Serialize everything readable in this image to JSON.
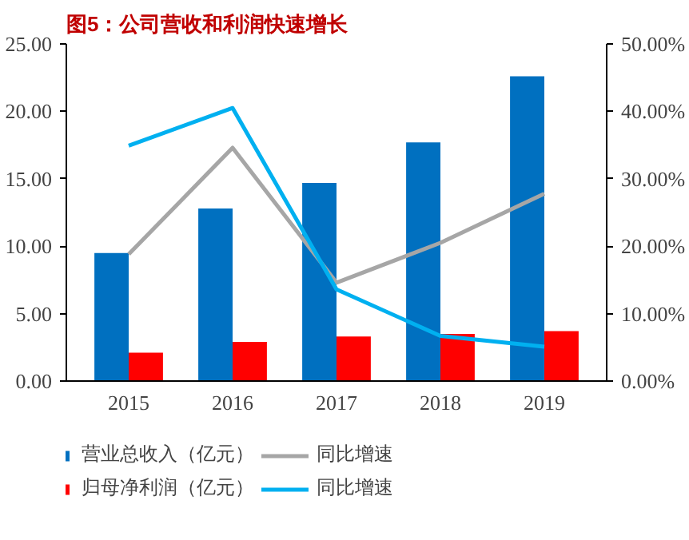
{
  "chart_data": {
    "type": "bar",
    "title": "图5：公司营收和利润快速增长",
    "categories": [
      "2015",
      "2016",
      "2017",
      "2018",
      "2019"
    ],
    "series": [
      {
        "name": "营业总收入（亿元）",
        "color": "#0070c0",
        "values": [
          9.5,
          12.8,
          14.7,
          17.7,
          22.6
        ]
      },
      {
        "name": "归母净利润（亿元）",
        "color": "#ff0000",
        "values": [
          2.1,
          2.9,
          3.3,
          3.5,
          3.7
        ]
      },
      {
        "name": "同比增速",
        "type": "line",
        "axis": "y2",
        "color": "#a6a6a6",
        "values": [
          18.8,
          34.6,
          14.6,
          20.5,
          27.8
        ]
      },
      {
        "name": "同比增速",
        "type": "line",
        "axis": "y2",
        "color": "#00b0f0",
        "values": [
          34.9,
          40.5,
          13.6,
          6.7,
          5.1
        ]
      }
    ],
    "ylim": [
      0,
      25
    ],
    "yticks": [
      {
        "value": 0,
        "label": "0.00"
      },
      {
        "value": 5,
        "label": "5.00"
      },
      {
        "value": 10,
        "label": "10.00"
      },
      {
        "value": 15,
        "label": "15.00"
      },
      {
        "value": 20,
        "label": "20.00"
      },
      {
        "value": 25,
        "label": "25.00"
      }
    ],
    "y2lim": [
      0,
      50
    ],
    "y2ticks": [
      {
        "value": 0,
        "label": "0.00%"
      },
      {
        "value": 10,
        "label": "10.00%"
      },
      {
        "value": 20,
        "label": "20.00%"
      },
      {
        "value": 30,
        "label": "30.00%"
      },
      {
        "value": 40,
        "label": "40.00%"
      },
      {
        "value": 50,
        "label": "50.00%"
      }
    ],
    "grid": false,
    "legend": "bottom"
  }
}
